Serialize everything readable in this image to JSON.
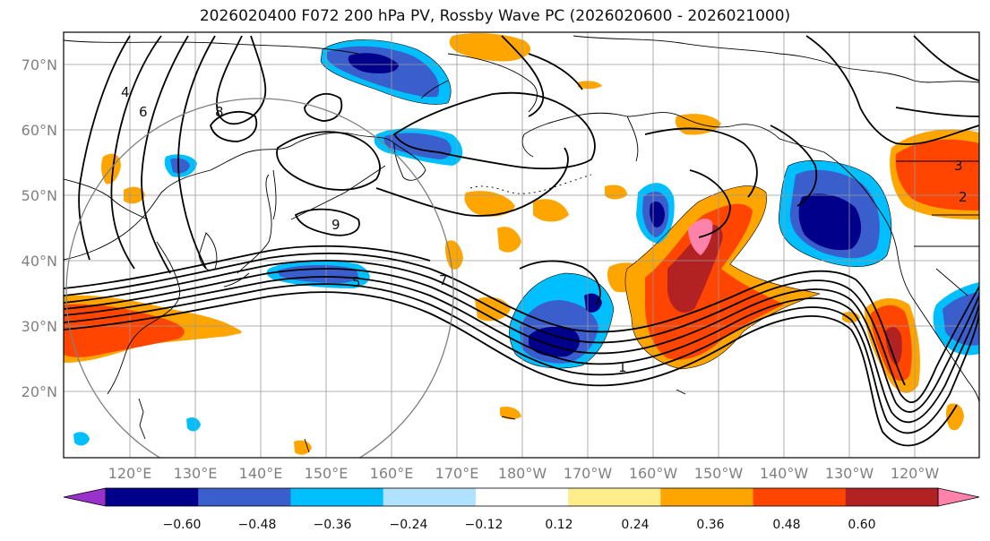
{
  "title": "2026020400 F072 200 hPa PV, Rossby Wave PC (2026020600 - 2026021000)",
  "map": {
    "lat_labels": [
      "70°N",
      "60°N",
      "50°N",
      "40°N",
      "30°N",
      "20°N"
    ],
    "lon_labels": [
      "120°E",
      "130°E",
      "140°E",
      "150°E",
      "160°E",
      "170°E",
      "180°W",
      "170°W",
      "160°W",
      "150°W",
      "140°W",
      "130°W",
      "120°W"
    ],
    "contour_labels": [
      "1",
      "2",
      "3",
      "4",
      "5",
      "6",
      "7",
      "8",
      "9"
    ]
  },
  "colorbar": {
    "tick_labels": [
      "−0.60",
      "−0.48",
      "−0.36",
      "−0.24",
      "−0.12",
      "0.12",
      "0.24",
      "0.36",
      "0.48",
      "0.60"
    ],
    "colors": [
      "#9932cc",
      "#00008b",
      "#3a5fcd",
      "#00bfff",
      "#b0e2ff",
      "#ffffff",
      "#ffec8b",
      "#ffa500",
      "#ff4500",
      "#b22222",
      "#ff82ab"
    ]
  }
}
